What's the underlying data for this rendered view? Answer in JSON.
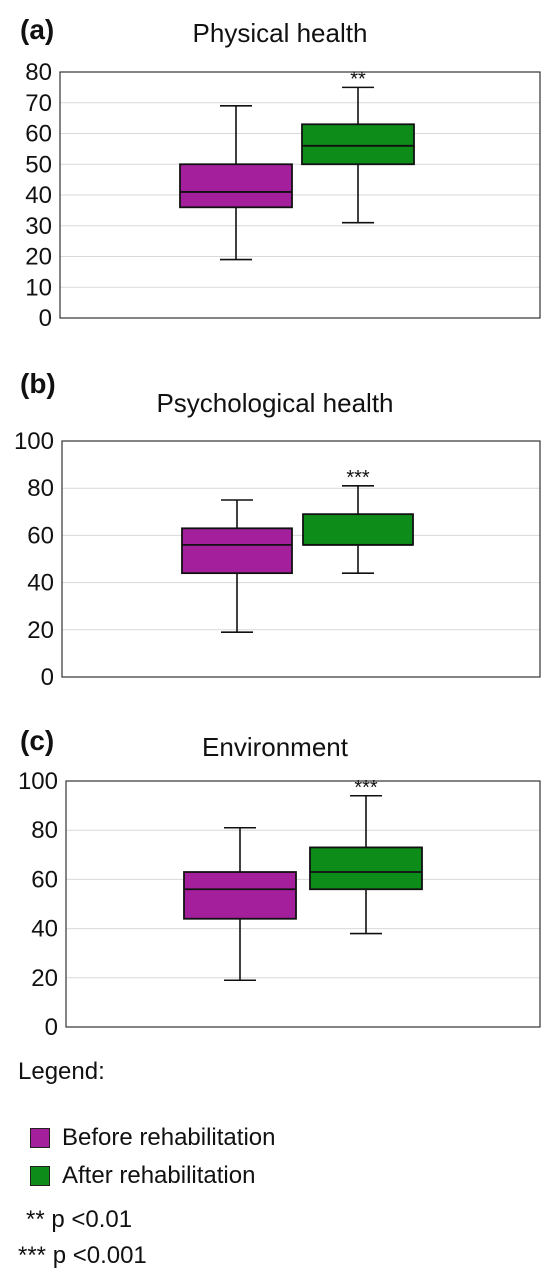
{
  "chart_data": [
    {
      "type": "boxplot",
      "panel": "(a)",
      "title": "Physical health",
      "ylim": [
        0,
        80
      ],
      "yticks": [
        0,
        10,
        20,
        30,
        40,
        50,
        60,
        70,
        80
      ],
      "grid": true,
      "series": [
        {
          "name": "Before rehabilitation",
          "color": "#a31f9b",
          "min": 19,
          "q1": 36,
          "median": 41,
          "q3": 50,
          "max": 69,
          "annotation": ""
        },
        {
          "name": "After rehabilitation",
          "color": "#0d8c19",
          "min": 31,
          "q1": 50,
          "median": 56,
          "q3": 63,
          "max": 75,
          "annotation": "**"
        }
      ]
    },
    {
      "type": "boxplot",
      "panel": "(b)",
      "title": "Psychological health",
      "ylim": [
        0,
        100
      ],
      "yticks": [
        0,
        20,
        40,
        60,
        80,
        100
      ],
      "grid": true,
      "series": [
        {
          "name": "Before rehabilitation",
          "color": "#a31f9b",
          "min": 19,
          "q1": 44,
          "median": 56,
          "q3": 63,
          "max": 75,
          "annotation": ""
        },
        {
          "name": "After rehabilitation",
          "color": "#0d8c19",
          "min": 44,
          "q1": 56,
          "median": 56,
          "q3": 69,
          "max": 81,
          "annotation": "***"
        }
      ]
    },
    {
      "type": "boxplot",
      "panel": "(c)",
      "title": "Environment",
      "ylim": [
        0,
        100
      ],
      "yticks": [
        0,
        20,
        40,
        60,
        80,
        100
      ],
      "grid": true,
      "series": [
        {
          "name": "Before rehabilitation",
          "color": "#a31f9b",
          "min": 19,
          "q1": 44,
          "median": 56,
          "q3": 63,
          "max": 81,
          "annotation": ""
        },
        {
          "name": "After rehabilitation",
          "color": "#0d8c19",
          "min": 38,
          "q1": 56,
          "median": 63,
          "q3": 73,
          "max": 94,
          "annotation": "***"
        }
      ]
    }
  ],
  "legend": {
    "title": "Legend:",
    "items": [
      {
        "label": "Before rehabilitation",
        "color": "#a31f9b"
      },
      {
        "label": "After rehabilitation",
        "color": "#0d8c19"
      }
    ],
    "notes": [
      "** p <0.01",
      "*** p <0.001"
    ]
  }
}
